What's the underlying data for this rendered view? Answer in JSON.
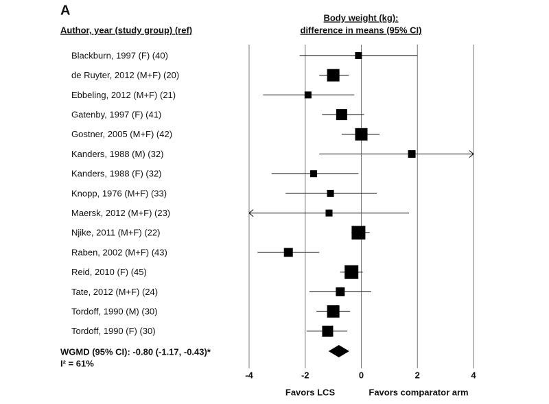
{
  "chart_data": {
    "type": "forest",
    "panel_label": "A",
    "column_header": "Author, year (study group) (ref)",
    "axis_title": [
      "Body weight (kg):",
      "difference in means (95% CI)"
    ],
    "categories": [
      "Blackburn, 1997 (F) (40)",
      "de Ruyter, 2012 (M+F) (20)",
      "Ebbeling, 2012 (M+F) (21)",
      "Gatenby, 1997 (F) (41)",
      "Gostner, 2005 (M+F) (42)",
      "Kanders, 1988 (M) (32)",
      "Kanders, 1988 (F) (32)",
      "Knopp, 1976 (M+F) (33)",
      "Maersk, 2012 (M+F) (23)",
      "Njike, 2011 (M+F) (22)",
      "Raben, 2002 (M+F) (43)",
      "Reid, 2010 (F) (45)",
      "Tate, 2012 (M+F) (24)",
      "Tordoff, 1990 (M) (30)",
      "Tordoff, 1990 (F) (30)"
    ],
    "values": [
      -0.1,
      -1.0,
      -1.9,
      -0.7,
      0,
      1.8,
      -1.7,
      -1.1,
      -1.15,
      -0.1,
      -2.6,
      -0.35,
      -0.75,
      -1.0,
      -1.2
    ],
    "lower": [
      -2.2,
      -1.5,
      -3.5,
      -1.4,
      -0.7,
      -1.5,
      -3.2,
      -2.7,
      -4.1,
      -0.35,
      -3.7,
      -0.75,
      -1.85,
      -1.6,
      -1.95
    ],
    "upper": [
      2.0,
      -0.45,
      -0.25,
      0.1,
      0.65,
      5.1,
      -0.1,
      0.55,
      1.7,
      0.3,
      -1.5,
      0.05,
      0.35,
      -0.4,
      -0.5
    ],
    "weights": [
      3.1,
      10.0,
      3.1,
      7.9,
      10.0,
      3.7,
      3.1,
      3.1,
      3.1,
      12.3,
      5.2,
      12.3,
      5.2,
      10.0,
      7.9
    ],
    "summary": {
      "label": "WGMD (95% CI): -0.80 (-1.17, -0.43)*",
      "estimate": -0.8,
      "lower": -1.17,
      "upper": -0.43
    },
    "heterogeneity": "I² = 61%",
    "xlim": [
      -4,
      4
    ],
    "xticks": [
      -4,
      -2,
      0,
      2,
      4
    ],
    "favors_left": "Favors LCS",
    "favors_right": "Favors comparator arm",
    "grid": true,
    "color": "#000000"
  }
}
